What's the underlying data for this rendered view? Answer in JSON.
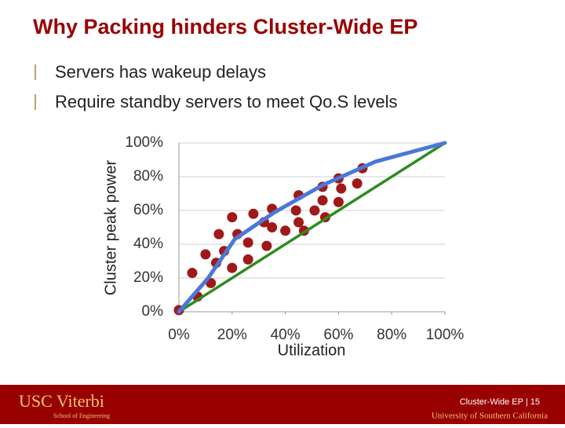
{
  "slide": {
    "title": "Why Packing hinders Cluster-Wide EP",
    "bullets": [
      "Servers has wakeup delays",
      "Require standby servers to meet Qo.S levels"
    ],
    "footer": {
      "logo": "USC Viterbi",
      "logo_sub": "School of Engineering",
      "caption": "Cluster-Wide EP | 15",
      "university": "University of Southern California"
    }
  },
  "chart_data": {
    "type": "scatter",
    "xlabel": "Utilization",
    "ylabel": "Cluster peak power",
    "xlim": [
      0,
      100
    ],
    "ylim": [
      0,
      100
    ],
    "xticks": [
      {
        "value": 0,
        "label": "0%"
      },
      {
        "value": 20,
        "label": "20%"
      },
      {
        "value": 40,
        "label": "40%"
      },
      {
        "value": 60,
        "label": "60%"
      },
      {
        "value": 80,
        "label": "80%"
      },
      {
        "value": 100,
        "label": "100%"
      }
    ],
    "yticks": [
      {
        "value": 0,
        "label": "0%"
      },
      {
        "value": 20,
        "label": "20%"
      },
      {
        "value": 40,
        "label": "40%"
      },
      {
        "value": 60,
        "label": "60%"
      },
      {
        "value": 80,
        "label": "80%"
      },
      {
        "value": 100,
        "label": "100%"
      }
    ],
    "grid": true,
    "color": "#a01818",
    "x": [
      0,
      5,
      7,
      10,
      12,
      15,
      14,
      17,
      20,
      20,
      22,
      26,
      26,
      28,
      32,
      33,
      35,
      35,
      40,
      44,
      45,
      45,
      47,
      51,
      54,
      54,
      55,
      60,
      60,
      61,
      67,
      69
    ],
    "values": [
      1,
      23,
      9,
      34,
      17,
      46,
      29,
      36,
      56,
      26,
      46,
      41,
      31,
      58,
      53,
      39,
      50,
      61,
      48,
      60,
      53,
      69,
      48,
      60,
      74,
      66,
      56,
      79,
      65,
      73,
      76,
      85
    ],
    "lines": [
      {
        "color": "#2e8b1e",
        "x": [
          0,
          100
        ],
        "values": [
          0,
          100
        ]
      },
      {
        "color": "#4a78d8",
        "x": [
          0,
          11,
          21,
          36,
          54,
          74,
          100
        ],
        "values": [
          0,
          20,
          43,
          59,
          75,
          89,
          100
        ]
      }
    ]
  }
}
